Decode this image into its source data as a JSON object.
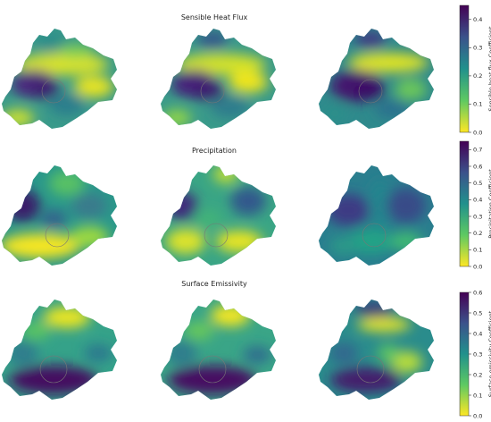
{
  "rows": [
    {
      "title": "Sensible Heat Flux",
      "colorbar_label": "Sensible heat flux Coefficient",
      "ticks": [
        "0.0",
        "0.1",
        "0.2",
        "0.3",
        "0.4"
      ],
      "tick_values": [
        0.0,
        0.1,
        0.2,
        0.3,
        0.4
      ],
      "vmax": 0.45
    },
    {
      "title": "Precipitation",
      "colorbar_label": "Precipitation Coefficient",
      "ticks": [
        "0.0",
        "0.1",
        "0.2",
        "0.3",
        "0.4",
        "0.5",
        "0.6",
        "0.7"
      ],
      "tick_values": [
        0.0,
        0.1,
        0.2,
        0.3,
        0.4,
        0.5,
        0.6,
        0.7
      ],
      "vmax": 0.75
    },
    {
      "title": "Surface Emissivity",
      "colorbar_label": "Surface emissivity Coefficient",
      "ticks": [
        "0.0",
        "0.1",
        "0.2",
        "0.3",
        "0.4",
        "0.5",
        "0.6"
      ],
      "tick_values": [
        0.0,
        0.1,
        0.2,
        0.3,
        0.4,
        0.5,
        0.6
      ],
      "vmax": 0.6
    }
  ],
  "colormap": "viridis",
  "colormap_stops": [
    "#440154",
    "#3b528b",
    "#21918c",
    "#5ec962",
    "#fde725"
  ]
}
